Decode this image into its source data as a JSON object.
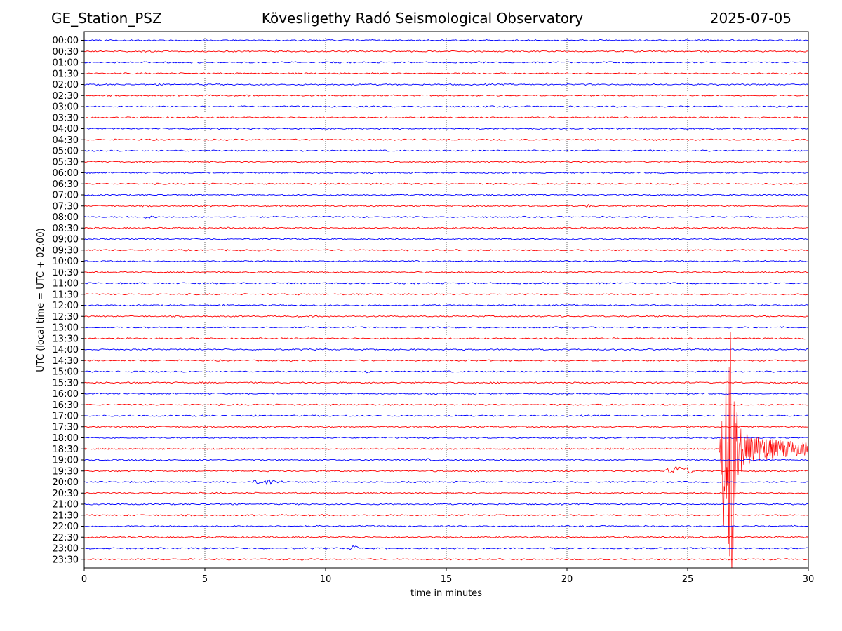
{
  "chart_data": {
    "type": "line",
    "title_left": "GE_Station_PSZ",
    "title": "Kövesligethy Radó Seismological Observatory",
    "title_right": "2025-07-05",
    "xlabel": "time in minutes",
    "ylabel": "UTC (local time = UTC + 02:00)",
    "xlim": [
      0,
      30
    ],
    "xticks": [
      0,
      5,
      10,
      15,
      20,
      25,
      30
    ],
    "grid": "vertical dotted at x ticks",
    "row_labels": [
      "00:00",
      "00:30",
      "01:00",
      "01:30",
      "02:00",
      "02:30",
      "03:00",
      "03:30",
      "04:00",
      "04:30",
      "05:00",
      "05:30",
      "06:00",
      "06:30",
      "07:00",
      "07:30",
      "08:00",
      "08:30",
      "09:00",
      "09:30",
      "10:00",
      "10:30",
      "11:00",
      "11:30",
      "12:00",
      "12:30",
      "13:00",
      "13:30",
      "14:00",
      "14:30",
      "15:00",
      "15:30",
      "16:00",
      "16:30",
      "17:00",
      "17:30",
      "18:00",
      "18:30",
      "19:00",
      "19:30",
      "20:00",
      "20:30",
      "21:00",
      "21:30",
      "22:00",
      "22:30",
      "23:00",
      "23:30"
    ],
    "trace_colors": [
      "#0000ff",
      "#ff0000"
    ],
    "events": [
      {
        "row": "07:30",
        "start_min": 20.7,
        "end_min": 21.2,
        "amplitude_rows": 0.18
      },
      {
        "row": "08:00",
        "start_min": 2.3,
        "end_min": 3.8,
        "amplitude_rows": 0.12
      },
      {
        "row": "15:00",
        "start_min": 11.5,
        "end_min": 12.3,
        "amplitude_rows": 0.08
      },
      {
        "row": "18:30",
        "start_min": 26.3,
        "end_min": 30.0,
        "amplitude_rows": 11.8
      },
      {
        "row": "19:00",
        "start_min": 14.1,
        "end_min": 14.6,
        "amplitude_rows": 0.12
      },
      {
        "row": "19:30",
        "start_min": 24.1,
        "end_min": 26.3,
        "amplitude_rows": 0.6
      },
      {
        "row": "20:00",
        "start_min": 7.0,
        "end_min": 9.3,
        "amplitude_rows": 0.4
      },
      {
        "row": "22:30",
        "start_min": 24.8,
        "end_min": 25.3,
        "amplitude_rows": 0.18
      },
      {
        "row": "23:00",
        "start_min": 11.0,
        "end_min": 11.8,
        "amplitude_rows": 0.35
      }
    ]
  }
}
